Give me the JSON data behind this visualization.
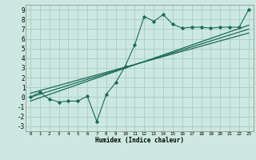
{
  "xlabel": "Humidex (Indice chaleur)",
  "bg_color": "#cce8e0",
  "grid_color": "#aaccc4",
  "line_color": "#1a6b5a",
  "xlim": [
    -0.5,
    23.5
  ],
  "ylim": [
    -3.5,
    9.5
  ],
  "xticks": [
    0,
    1,
    2,
    3,
    4,
    5,
    6,
    7,
    8,
    9,
    10,
    11,
    12,
    13,
    14,
    15,
    16,
    17,
    18,
    19,
    20,
    21,
    22,
    23
  ],
  "yticks": [
    -3,
    -2,
    -1,
    0,
    1,
    2,
    3,
    4,
    5,
    6,
    7,
    8,
    9
  ],
  "scatter_x": [
    0,
    1,
    2,
    3,
    4,
    5,
    6,
    7,
    8,
    9,
    10,
    11,
    12,
    13,
    14,
    15,
    16,
    17,
    18,
    19,
    20,
    21,
    22,
    23
  ],
  "scatter_y": [
    0.0,
    0.5,
    -0.2,
    -0.5,
    -0.4,
    -0.4,
    0.1,
    -2.5,
    0.3,
    1.5,
    3.2,
    5.4,
    8.3,
    7.8,
    8.5,
    7.5,
    7.1,
    7.2,
    7.2,
    7.1,
    7.2,
    7.2,
    7.2,
    9.0
  ],
  "line1_x": [
    0,
    23
  ],
  "line1_y": [
    0.0,
    7.0
  ],
  "line2_x": [
    0,
    23
  ],
  "line2_y": [
    -0.4,
    7.4
  ],
  "line3_x": [
    0,
    23
  ],
  "line3_y": [
    0.4,
    6.6
  ]
}
